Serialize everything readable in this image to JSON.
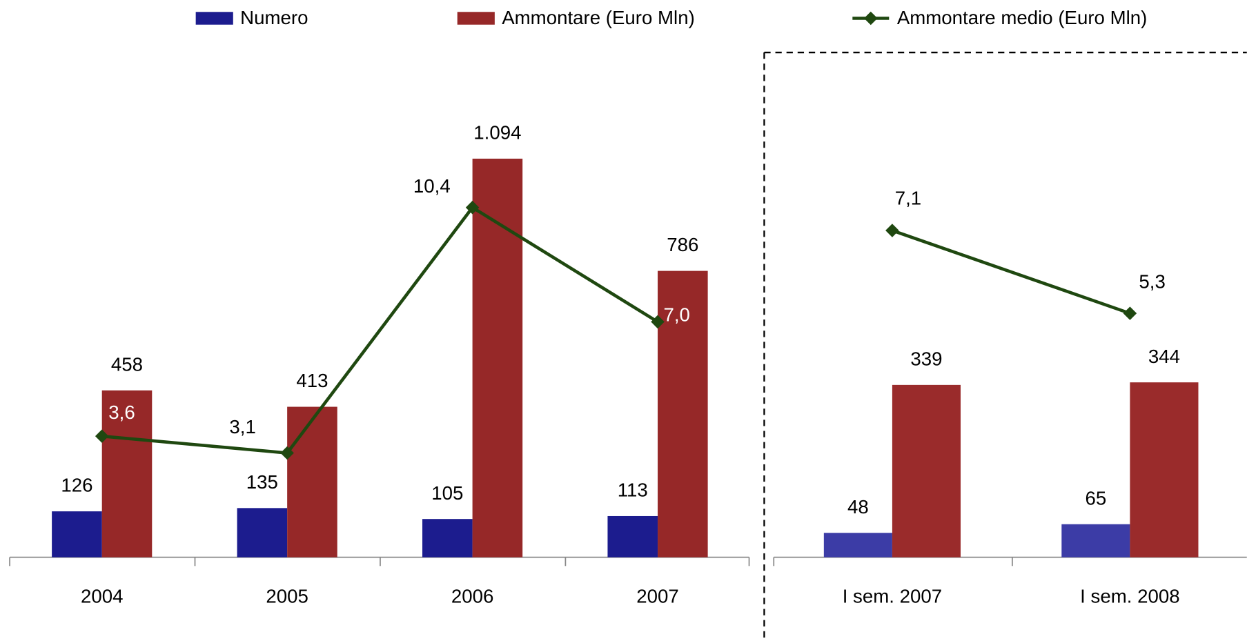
{
  "chart_data": [
    {
      "type": "bar",
      "categories": [
        "2004",
        "2005",
        "2006",
        "2007"
      ],
      "ylim": [
        0,
        1200
      ],
      "y2lim": [
        0,
        13
      ],
      "series": [
        {
          "name": "Numero",
          "color": "#1c1c8e",
          "values": [
            126,
            135,
            105,
            113
          ]
        },
        {
          "name": "Ammontare (Euro Mln)",
          "color": "#962828",
          "values": [
            458,
            413,
            1094,
            786
          ],
          "value_labels": [
            "458",
            "413",
            "1.094",
            "786"
          ]
        },
        {
          "name": "Ammontare medio (Euro Mln)",
          "color": "#1f4810",
          "type": "line",
          "axis": "y2",
          "values": [
            3.6,
            3.1,
            10.4,
            7.0
          ],
          "value_labels": [
            "3,6",
            "3,1",
            "10,4",
            "7,0"
          ]
        }
      ]
    },
    {
      "type": "bar",
      "categories": [
        "I sem. 2007",
        "I sem. 2008"
      ],
      "ylim": [
        0,
        860
      ],
      "y2lim": [
        0,
        9.5
      ],
      "series": [
        {
          "color": "#3c3ca6",
          "values": [
            48,
            65
          ]
        },
        {
          "color": "#9a2b2b",
          "values": [
            339,
            344
          ]
        },
        {
          "color": "#1f4810",
          "type": "line",
          "axis": "y2",
          "values": [
            7.1,
            5.3
          ],
          "value_labels": [
            "7,1",
            "5,3"
          ]
        }
      ]
    }
  ]
}
